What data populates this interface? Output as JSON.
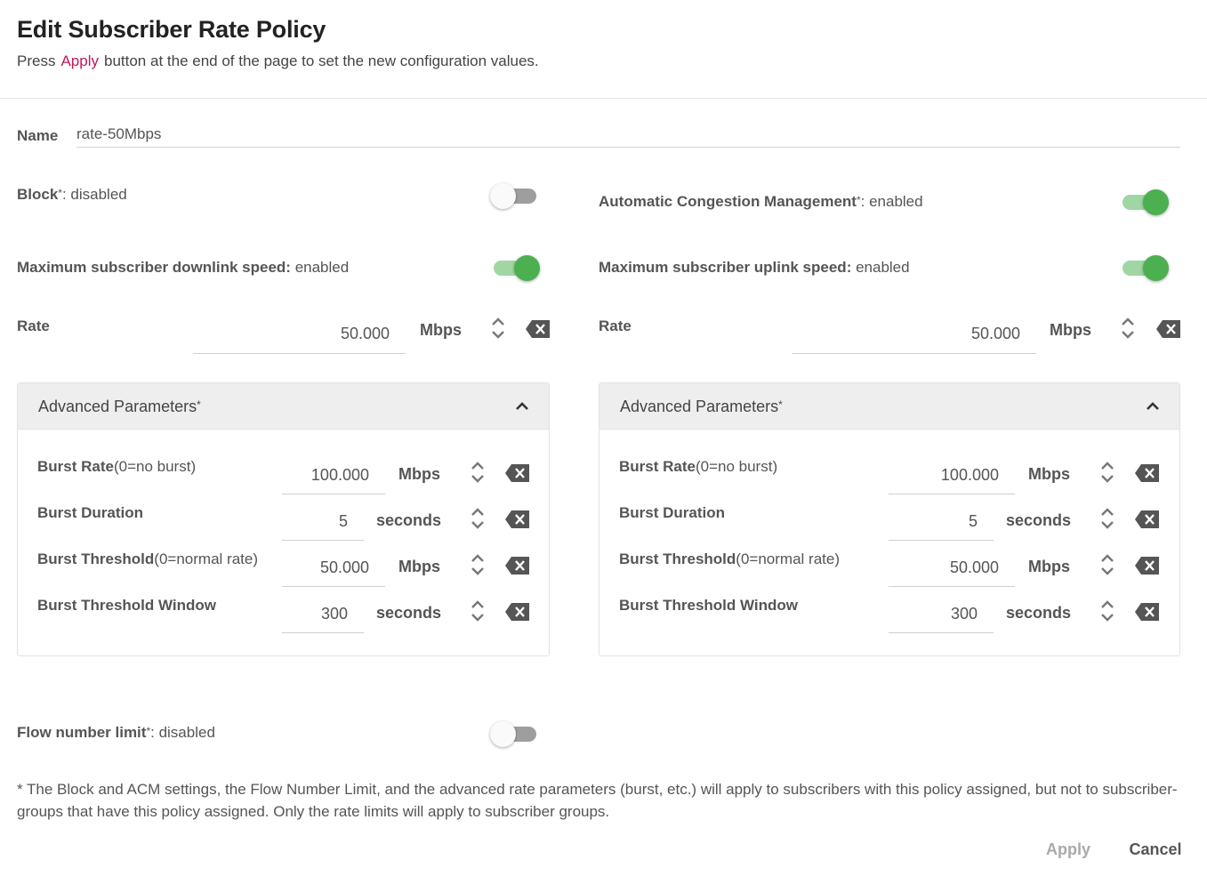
{
  "header": {
    "title": "Edit Subscriber Rate Policy",
    "subtitle_pre": "Press",
    "subtitle_link": "Apply",
    "subtitle_post": "button at the end of the page to set the new configuration values."
  },
  "name": {
    "label": "Name",
    "value": "rate-50Mbps"
  },
  "block": {
    "label": "Block",
    "asterisk": "*",
    "status": ": disabled",
    "enabled": false
  },
  "acm": {
    "label": "Automatic Congestion Management",
    "asterisk": "*",
    "status": ": enabled",
    "enabled": true
  },
  "downlink": {
    "label": "Maximum subscriber downlink speed:",
    "status": " enabled",
    "enabled": true,
    "rate_label": "Rate",
    "rate_value": "50.000",
    "rate_unit": "Mbps",
    "advanced": {
      "title": "Advanced Parameters",
      "asterisk": "*",
      "rows": [
        {
          "label": "Burst Rate",
          "paren": "(0=no burst)",
          "value": "100.000",
          "unit": "Mbps"
        },
        {
          "label": "Burst Duration",
          "paren": "",
          "value": "5",
          "unit": "seconds"
        },
        {
          "label": "Burst Threshold",
          "paren": "(0=normal rate)",
          "value": "50.000",
          "unit": "Mbps"
        },
        {
          "label": "Burst Threshold Window",
          "paren": "",
          "value": "300",
          "unit": "seconds"
        }
      ]
    }
  },
  "uplink": {
    "label": "Maximum subscriber uplink speed:",
    "status": " enabled",
    "enabled": true,
    "rate_label": "Rate",
    "rate_value": "50.000",
    "rate_unit": "Mbps",
    "advanced": {
      "title": "Advanced Parameters",
      "asterisk": "*",
      "rows": [
        {
          "label": "Burst Rate",
          "paren": "(0=no burst)",
          "value": "100.000",
          "unit": "Mbps"
        },
        {
          "label": "Burst Duration",
          "paren": "",
          "value": "5",
          "unit": "seconds"
        },
        {
          "label": "Burst Threshold",
          "paren": "(0=normal rate)",
          "value": "50.000",
          "unit": "Mbps"
        },
        {
          "label": "Burst Threshold Window",
          "paren": "",
          "value": "300",
          "unit": "seconds"
        }
      ]
    }
  },
  "flow_limit": {
    "label": "Flow number limit",
    "asterisk": "*",
    "status": ": disabled",
    "enabled": false
  },
  "footnote": "* The Block and ACM settings, the Flow Number Limit, and the advanced rate parameters (burst, etc.) will apply to subscribers with this policy assigned, but not to subscriber-groups that have this policy assigned. Only the rate limits will apply to subscriber groups.",
  "buttons": {
    "apply": "Apply",
    "cancel": "Cancel"
  },
  "colors": {
    "accent_link": "#c2185b",
    "toggle_on": "#4caf50",
    "toggle_on_track": "#9fd6a4",
    "toggle_off_track": "#9e9e9e"
  },
  "icons": {
    "stepper": "up-down-chevron-icon",
    "clear": "backspace-clear-icon",
    "collapse": "chevron-up-icon"
  }
}
